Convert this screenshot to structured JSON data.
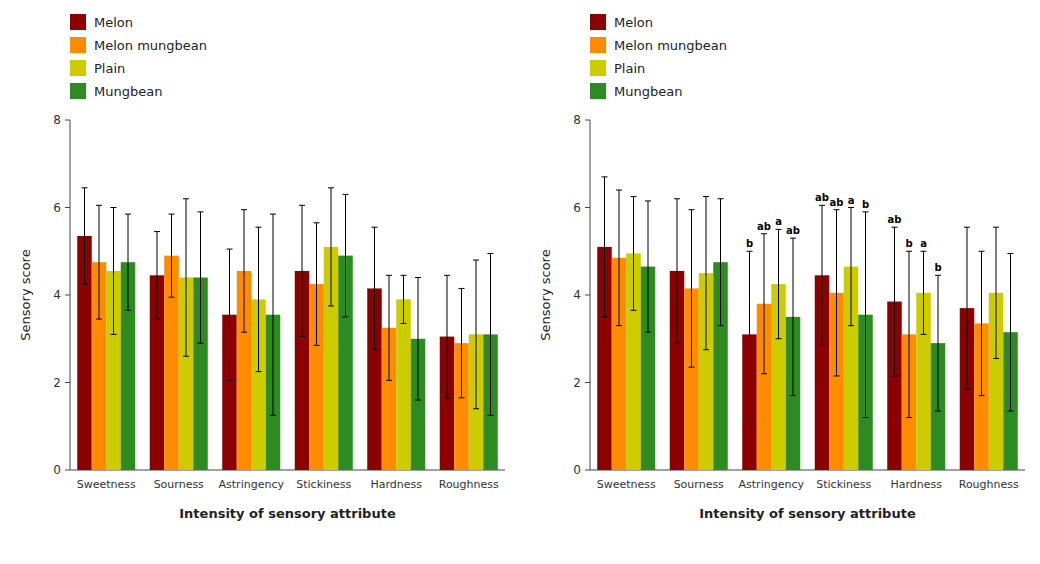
{
  "chart_data": [
    {
      "type": "bar",
      "categories": [
        "Sweetness",
        "Sourness",
        "Astringency",
        "Stickiness",
        "Hardness",
        "Roughness"
      ],
      "series": [
        {
          "name": "Melon",
          "color": "#8B0000",
          "values": [
            5.35,
            4.45,
            3.55,
            4.55,
            4.15,
            3.05
          ],
          "errors": [
            1.1,
            1.0,
            1.5,
            1.5,
            1.4,
            1.4
          ]
        },
        {
          "name": "Melon mungbean",
          "color": "#FF8C00",
          "values": [
            4.75,
            4.9,
            4.55,
            4.25,
            3.25,
            2.9
          ],
          "errors": [
            1.3,
            0.95,
            1.4,
            1.4,
            1.2,
            1.25
          ]
        },
        {
          "name": "Plain",
          "color": "#CCCC00",
          "values": [
            4.55,
            4.4,
            3.9,
            5.1,
            3.9,
            3.1
          ],
          "errors": [
            1.45,
            1.8,
            1.65,
            1.35,
            0.55,
            1.7
          ]
        },
        {
          "name": "Mungbean",
          "color": "#2D8B22",
          "values": [
            4.75,
            4.4,
            3.55,
            4.9,
            3.0,
            3.1
          ],
          "errors": [
            1.1,
            1.5,
            2.3,
            1.4,
            1.4,
            1.85
          ]
        }
      ],
      "xlabel": "Intensity of sensory attribute",
      "ylabel": "Sensory score",
      "ylim": [
        0,
        8
      ],
      "yticks": [
        0,
        2,
        4,
        6,
        8
      ],
      "grid": false,
      "legend": "upper-left"
    },
    {
      "type": "bar",
      "categories": [
        "Sweetness",
        "Sourness",
        "Astringency",
        "Stickiness",
        "Hardness",
        "Roughness"
      ],
      "series": [
        {
          "name": "Melon",
          "color": "#8B0000",
          "values": [
            5.1,
            4.55,
            3.1,
            4.45,
            3.85,
            3.7
          ],
          "errors": [
            1.6,
            1.65,
            1.9,
            1.6,
            1.7,
            1.85
          ],
          "annotations": [
            null,
            null,
            "b",
            "ab",
            "ab",
            null
          ]
        },
        {
          "name": "Melon mungbean",
          "color": "#FF8C00",
          "values": [
            4.85,
            4.15,
            3.8,
            4.05,
            3.1,
            3.35
          ],
          "errors": [
            1.55,
            1.8,
            1.6,
            1.9,
            1.9,
            1.65
          ],
          "annotations": [
            null,
            null,
            "ab",
            "ab",
            "b",
            null
          ]
        },
        {
          "name": "Plain",
          "color": "#CCCC00",
          "values": [
            4.95,
            4.5,
            4.25,
            4.65,
            4.05,
            4.05
          ],
          "errors": [
            1.3,
            1.75,
            1.25,
            1.35,
            0.95,
            1.5
          ],
          "annotations": [
            null,
            null,
            "a",
            "a",
            "a",
            null
          ]
        },
        {
          "name": "Mungbean",
          "color": "#2D8B22",
          "values": [
            4.65,
            4.75,
            3.5,
            3.55,
            2.9,
            3.15
          ],
          "errors": [
            1.5,
            1.45,
            1.8,
            2.35,
            1.55,
            1.8
          ],
          "annotations": [
            null,
            null,
            "ab",
            "b",
            "b",
            null
          ]
        }
      ],
      "xlabel": "Intensity of sensory attribute",
      "ylabel": "Sensory score",
      "ylim": [
        0,
        8
      ],
      "yticks": [
        0,
        2,
        4,
        6,
        8
      ],
      "grid": false,
      "legend": "upper-left"
    }
  ]
}
